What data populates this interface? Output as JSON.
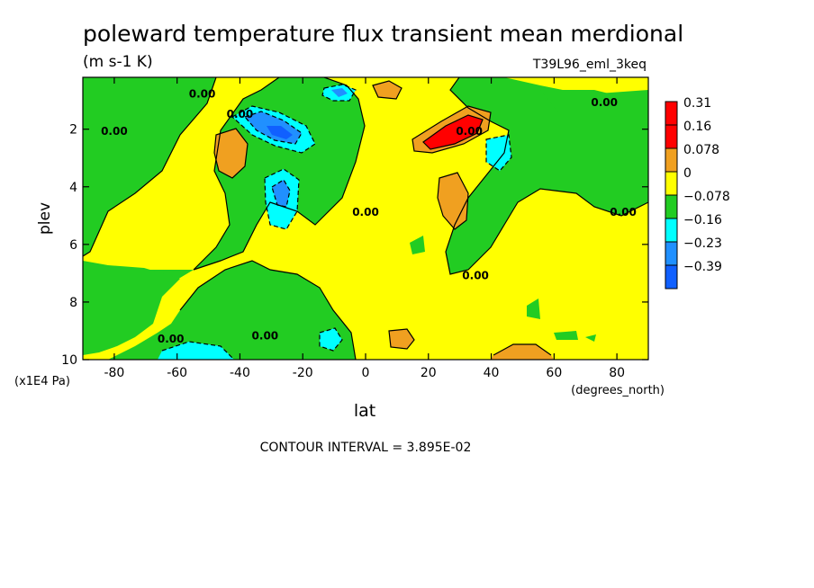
{
  "title": "poleward temperature flux transient mean merdional",
  "units": "(m s-1 K)",
  "run_label": "T39L96_eml_3keq",
  "xlabel": "lat",
  "x_units": "(degrees_north)",
  "ylabel": "plev",
  "y_units": "(x1E4 Pa)",
  "footer": "CONTOUR INTERVAL = 3.895E-02",
  "chart_data": {
    "type": "heatmap",
    "title": "poleward temperature flux transient mean merdional",
    "xlabel": "lat",
    "ylabel": "plev",
    "xlim": [
      -90,
      90
    ],
    "ylim": [
      10,
      0.2
    ],
    "x_ticks": [
      -80,
      -60,
      -40,
      -20,
      0,
      20,
      40,
      60,
      80
    ],
    "y_ticks": [
      2,
      4,
      6,
      8,
      10
    ],
    "legend": {
      "placement": "right",
      "levels": [
        "0.31",
        "0.16",
        "0.078",
        "0",
        "-0.078",
        "-0.16",
        "-0.23",
        "-0.39"
      ],
      "colors": [
        "#ff0000",
        "#ff0000",
        "#f0a020",
        "#ffff00",
        "#22cc22",
        "#00ffff",
        "#2090ff",
        "#1060ff"
      ]
    },
    "contour_labels": [
      {
        "text": "0.00",
        "lat": -80,
        "plev": 2.2
      },
      {
        "text": "0.00",
        "lat": -52,
        "plev": 0.9
      },
      {
        "text": "0.00",
        "lat": -40,
        "plev": 1.6
      },
      {
        "text": "0.00",
        "lat": 0,
        "plev": 5.0
      },
      {
        "text": "0.00",
        "lat": 35,
        "plev": 7.2
      },
      {
        "text": "0.00",
        "lat": 33,
        "plev": 2.2
      },
      {
        "text": "0.00",
        "lat": 76,
        "plev": 1.2
      },
      {
        "text": "0.00",
        "lat": 82,
        "plev": 5.0
      },
      {
        "text": "0.00",
        "lat": -62,
        "plev": 9.4
      },
      {
        "text": "0.00",
        "lat": -32,
        "plev": 9.3
      }
    ]
  }
}
